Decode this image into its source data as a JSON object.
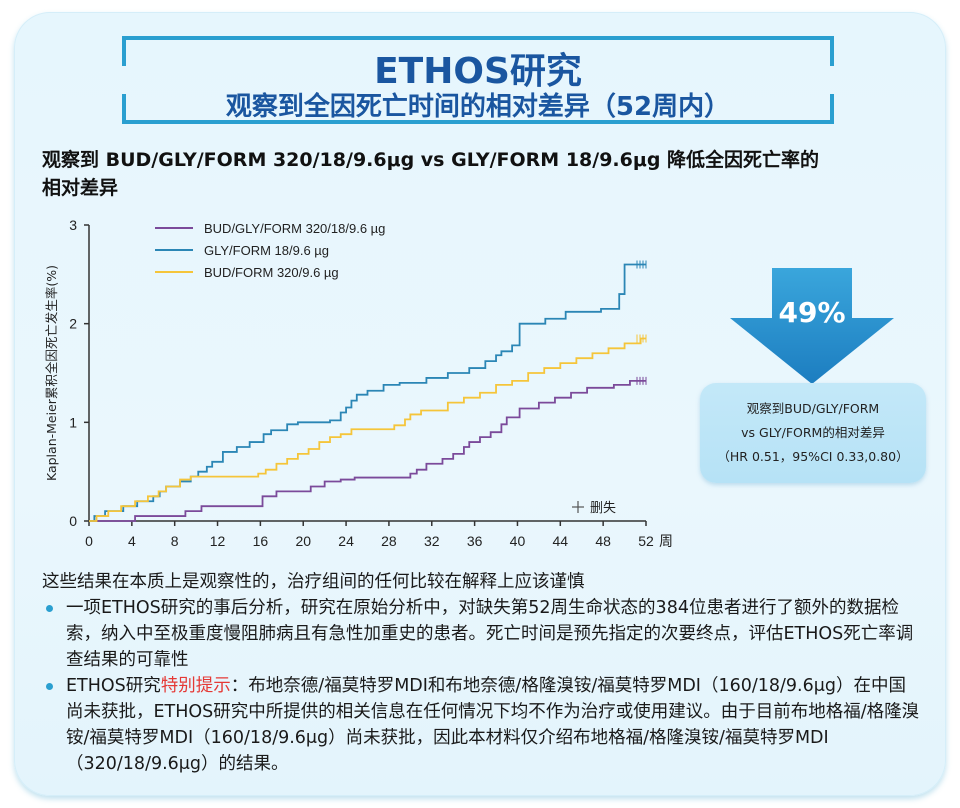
{
  "header": {
    "title": "ETHOS研究",
    "subtitle": "观察到全因死亡时间的相对差异（52周内）"
  },
  "chart_heading": {
    "line1": "观察到 BUD/GLY/FORM 320/18/9.6μg vs GLY/FORM 18/9.6μg 降低全因死亡率的",
    "line2": "相对差异"
  },
  "colors": {
    "title_blue": "#1a56a0",
    "frame_blue": "#2a9fd0",
    "purple": "#7b4a9a",
    "blue": "#2b86b5",
    "yellow": "#f5c53a",
    "highlight_red": "#e53935",
    "axis": "#333333"
  },
  "chart_data": {
    "type": "line",
    "subtype": "kaplan-meier-step",
    "title": "",
    "xlabel": "周",
    "ylabel": "Kaplan-Meier累积全因死亡发生率(%)",
    "xlim": [
      0,
      52
    ],
    "ylim": [
      0,
      3
    ],
    "x_ticks": [
      "0",
      "4",
      "8",
      "12",
      "16",
      "20",
      "24",
      "28",
      "32",
      "36",
      "40",
      "44",
      "48",
      "52"
    ],
    "y_ticks": [
      "0",
      "1",
      "2",
      "3"
    ],
    "grid": false,
    "legend_position": "top-left",
    "censor_legend": "删失",
    "series": [
      {
        "name": "BUD/GLY/FORM 320/18/9.6 µg",
        "color": "#7b4a9a",
        "x": [
          0,
          4.3,
          9.0,
          10.5,
          16.2,
          17.5,
          20.7,
          22.0,
          23.5,
          24.8,
          30.0,
          30.6,
          31.5,
          33.0,
          34.0,
          35.0,
          35.5,
          36.5,
          37.5,
          38.5,
          39.0,
          40.2,
          42.0,
          43.5,
          45.0,
          46.5,
          49.0,
          50.5,
          52
        ],
        "y": [
          0,
          0.05,
          0.1,
          0.15,
          0.25,
          0.3,
          0.35,
          0.4,
          0.42,
          0.44,
          0.48,
          0.52,
          0.58,
          0.63,
          0.68,
          0.75,
          0.8,
          0.85,
          0.9,
          0.98,
          1.05,
          1.14,
          1.2,
          1.25,
          1.3,
          1.35,
          1.38,
          1.42,
          1.42
        ]
      },
      {
        "name": "GLY/FORM 18/9.6 µg",
        "color": "#2b86b5",
        "x": [
          0,
          0.5,
          1.5,
          3.2,
          4.5,
          6.0,
          6.6,
          7.2,
          8.5,
          9.5,
          10.2,
          11.0,
          11.5,
          12.5,
          13.8,
          15.0,
          16.3,
          17.0,
          18.5,
          19.5,
          20.5,
          22.5,
          23.5,
          24.0,
          24.5,
          25.0,
          26.0,
          27.5,
          29.0,
          31.5,
          33.5,
          35.5,
          37.0,
          38.0,
          38.5,
          39.5,
          40.2,
          42.6,
          44.5,
          47.8,
          49.5,
          50.0,
          52
        ],
        "y": [
          0,
          0.05,
          0.1,
          0.15,
          0.2,
          0.25,
          0.3,
          0.35,
          0.4,
          0.45,
          0.5,
          0.55,
          0.6,
          0.7,
          0.75,
          0.8,
          0.88,
          0.92,
          0.98,
          1.0,
          1.0,
          1.02,
          1.1,
          1.15,
          1.22,
          1.28,
          1.32,
          1.38,
          1.4,
          1.45,
          1.5,
          1.55,
          1.62,
          1.68,
          1.72,
          1.78,
          2.0,
          2.05,
          2.12,
          2.15,
          2.3,
          2.6,
          2.6
        ]
      },
      {
        "name": "BUD/FORM 320/9.6 µg",
        "color": "#f5c53a",
        "x": [
          0,
          0.7,
          1.8,
          3.0,
          4.3,
          5.5,
          6.5,
          7.2,
          8.5,
          9.5,
          15.8,
          16.5,
          17.5,
          18.5,
          19.5,
          20.5,
          21.5,
          22.5,
          23.5,
          24.5,
          28.5,
          29.5,
          30.0,
          31.0,
          33.5,
          35.0,
          36.5,
          38.0,
          39.5,
          41.0,
          42.5,
          44.0,
          45.5,
          47.0,
          48.5,
          50.0,
          51.5,
          52
        ],
        "y": [
          0,
          0.05,
          0.1,
          0.15,
          0.2,
          0.25,
          0.3,
          0.35,
          0.42,
          0.45,
          0.48,
          0.52,
          0.58,
          0.63,
          0.68,
          0.73,
          0.8,
          0.85,
          0.88,
          0.93,
          0.97,
          1.03,
          1.08,
          1.12,
          1.2,
          1.25,
          1.3,
          1.38,
          1.42,
          1.5,
          1.55,
          1.6,
          1.65,
          1.7,
          1.75,
          1.8,
          1.85,
          1.85
        ]
      }
    ],
    "annotation": {
      "reduction": "49%",
      "box_line1": "观察到BUD/GLY/FORM",
      "box_line2": "vs GLY/FORM的相对差异",
      "box_line3": "（HR 0.51，95%CI 0.33,0.80）"
    }
  },
  "notes": {
    "lead": "这些结果在本质上是观察性的，治疗组间的任何比较在解释上应该谨慎",
    "bullet1": "一项ETHOS研究的事后分析，研究在原始分析中，对缺失第52周生命状态的384位患者进行了额外的数据检索，纳入中至极重度慢阻肺病且有急性加重史的患者。死亡时间是预先指定的次要终点，评估ETHOS死亡率调查结果的可靠性",
    "bullet2_prefix": "ETHOS研究",
    "bullet2_highlight": "特别提示",
    "bullet2_rest": "：布地奈德/福莫特罗MDI和布地奈德/格隆溴铵/福莫特罗MDI（160/18/9.6μg）在中国尚未获批，ETHOS研究中所提供的相关信息在任何情况下均不作为治疗或使用建议。由于目前布地格福/格隆溴铵/福莫特罗MDI（160/18/9.6μg）尚未获批，因此本材料仅介绍布地格福/格隆溴铵/福莫特罗MDI（320/18/9.6μg）的结果。"
  }
}
